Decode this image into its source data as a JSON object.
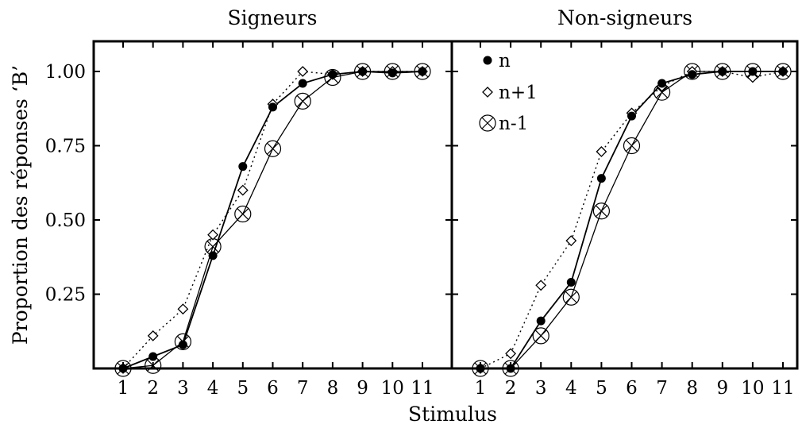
{
  "chart_data": {
    "type": "line",
    "xlabel": "Stimulus",
    "ylabel": "Proportion des réponses ‘B’",
    "x": [
      1,
      2,
      3,
      4,
      5,
      6,
      7,
      8,
      9,
      10,
      11
    ],
    "x_tick_labels": [
      "1",
      "2",
      "3",
      "4",
      "5",
      "6",
      "7",
      "8",
      "9",
      "10",
      "11"
    ],
    "y_tick_labels": [
      "0.25",
      "0.50",
      "0.75",
      "1.00"
    ],
    "y_ticks": [
      0.25,
      0.5,
      0.75,
      1.0
    ],
    "xlim": [
      0,
      12
    ],
    "ylim": [
      0,
      1.1
    ],
    "grid": false,
    "legend": {
      "placement": "top-left of right panel",
      "entries": [
        "n",
        "n+1",
        "n-1"
      ]
    },
    "panels": [
      {
        "title": "Signeurs",
        "series": [
          {
            "name": "n",
            "marker": "filled-circle",
            "line": "solid",
            "values": [
              0.0,
              0.04,
              0.08,
              0.38,
              0.68,
              0.88,
              0.96,
              0.99,
              1.0,
              0.995,
              1.0
            ]
          },
          {
            "name": "n+1",
            "marker": "open-diamond",
            "line": "dotted",
            "values": [
              0.0,
              0.11,
              0.2,
              0.45,
              0.6,
              0.89,
              1.0,
              0.99,
              1.0,
              1.0,
              1.0
            ]
          },
          {
            "name": "n-1",
            "marker": "circled-x",
            "line": "solid",
            "values": [
              0.0,
              0.01,
              0.09,
              0.41,
              0.52,
              0.74,
              0.9,
              0.98,
              1.0,
              1.0,
              1.0
            ]
          }
        ]
      },
      {
        "title": "Non-signeurs",
        "series": [
          {
            "name": "n",
            "marker": "filled-circle",
            "line": "solid",
            "values": [
              0.0,
              0.0,
              0.16,
              0.29,
              0.64,
              0.85,
              0.96,
              0.99,
              1.0,
              1.0,
              1.0
            ]
          },
          {
            "name": "n+1",
            "marker": "open-diamond",
            "line": "dotted",
            "values": [
              0.0,
              0.05,
              0.28,
              0.43,
              0.73,
              0.86,
              0.95,
              1.0,
              1.0,
              0.98,
              1.0
            ]
          },
          {
            "name": "n-1",
            "marker": "circled-x",
            "line": "solid",
            "values": [
              0.0,
              0.0,
              0.11,
              0.24,
              0.53,
              0.75,
              0.93,
              1.0,
              1.0,
              1.0,
              1.0
            ]
          }
        ]
      }
    ]
  }
}
